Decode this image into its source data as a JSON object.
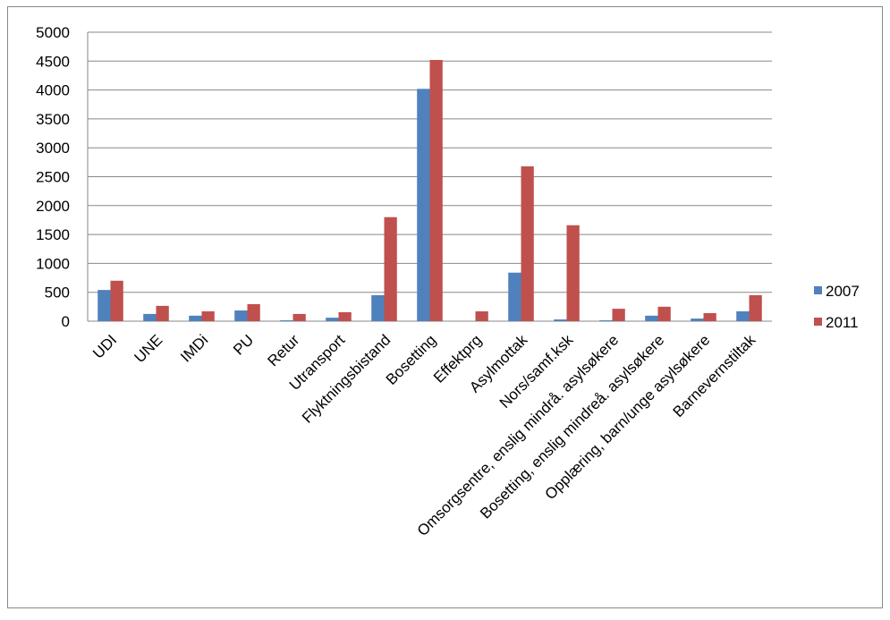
{
  "chart_data": {
    "type": "bar",
    "categories": [
      "UDI",
      "UNE",
      "IMDi",
      "PU",
      "Retur",
      "Utransport",
      "Flyktningsbistand",
      "Bosetting",
      "Effektprg",
      "Asylmottak",
      "Nors/samf.ksk",
      "Omsorgsentre, enslig mindrå. asylsøkere",
      "Bosetting, enslig mindreå. asylsøkere",
      "Opplæring, barn/unge asylsøkere",
      "Barnevernstiltak"
    ],
    "series": [
      {
        "name": "2007",
        "color": "#4f81bd",
        "values": [
          540,
          125,
          95,
          185,
          15,
          60,
          450,
          4020,
          0,
          840,
          30,
          15,
          95,
          45,
          170
        ]
      },
      {
        "name": "2011",
        "color": "#c0504d",
        "values": [
          700,
          265,
          170,
          295,
          125,
          155,
          1800,
          4520,
          170,
          2680,
          1660,
          215,
          250,
          140,
          450
        ]
      }
    ],
    "ylim": [
      0,
      5000
    ],
    "yticks": [
      0,
      500,
      1000,
      1500,
      2000,
      2500,
      3000,
      3500,
      4000,
      4500,
      5000
    ],
    "grid": true,
    "legend": "right"
  }
}
